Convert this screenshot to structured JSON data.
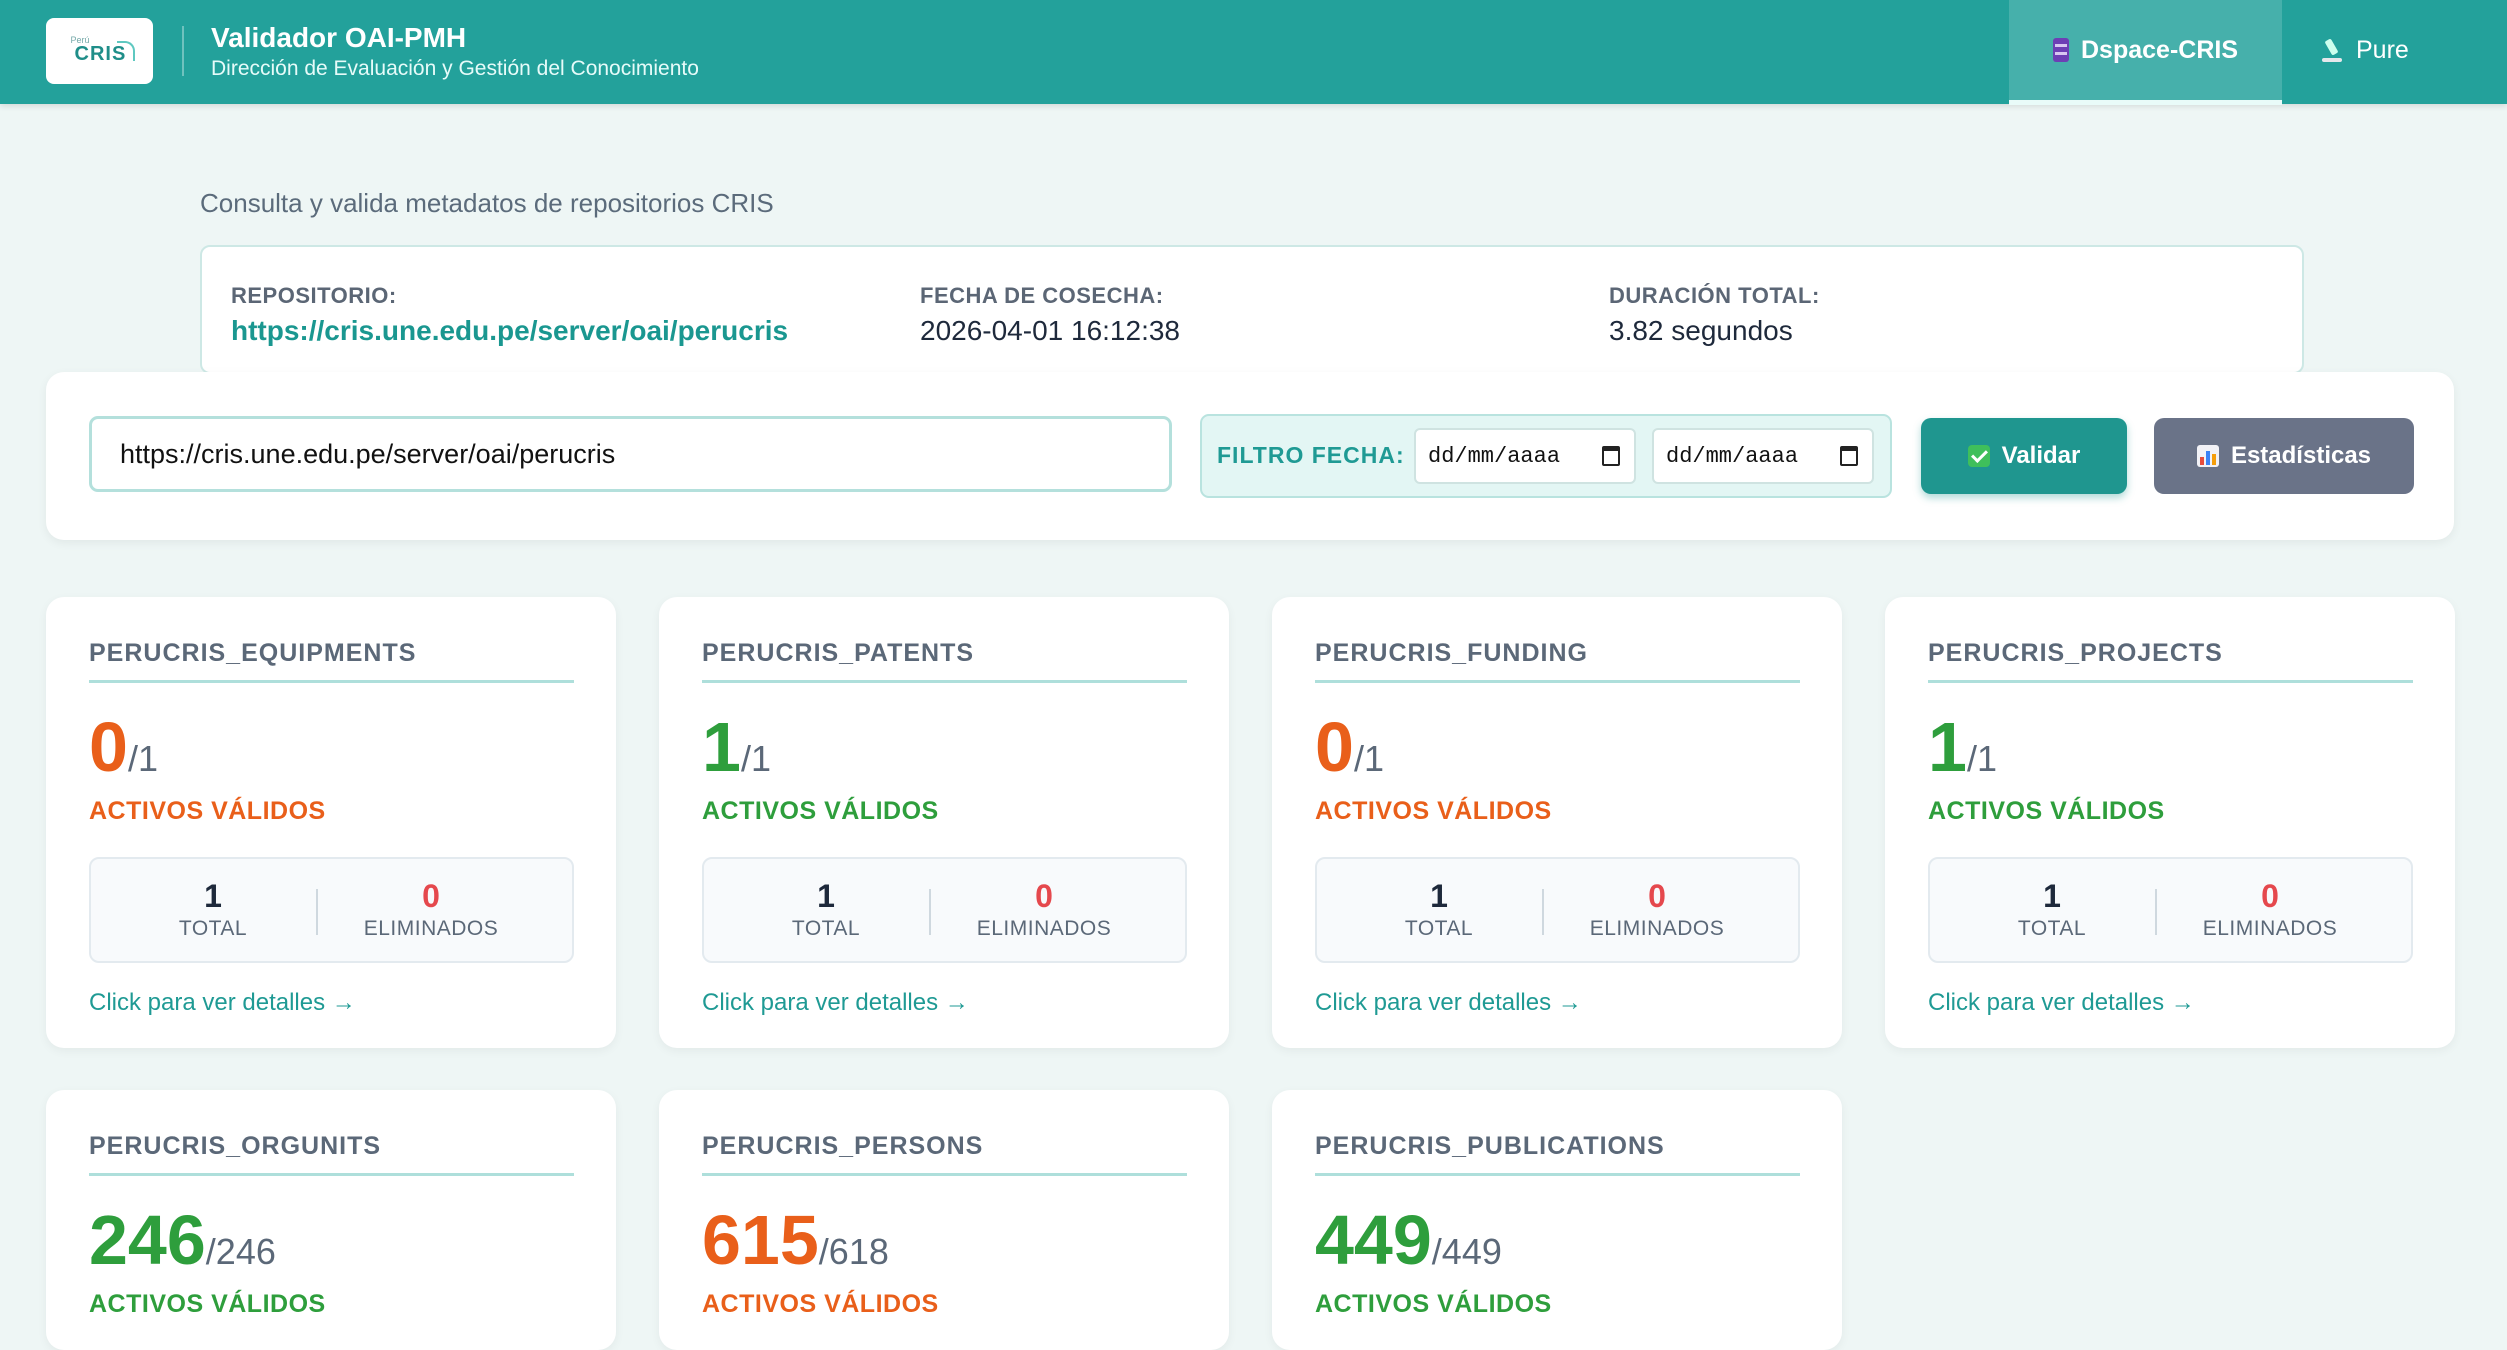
{
  "header": {
    "logo_small": "Perú",
    "logo_text": "CRIS",
    "title": "Validador OAI-PMH",
    "subtitle": "Dirección de Evaluación y Gestión del Conocimiento",
    "tabs": [
      {
        "label": "Dspace-CRIS",
        "icon": "database-icon",
        "active": true
      },
      {
        "label": "Pure",
        "icon": "microscope-icon",
        "active": false
      }
    ]
  },
  "intro": "Consulta y valida metadatos de repositorios CRIS",
  "info": {
    "repo_label": "REPOSITORIO:",
    "repo_value": "https://cris.une.edu.pe/server/oai/perucris",
    "date_label": "FECHA DE COSECHA:",
    "date_value": "2026-04-01 16:12:38",
    "duration_label": "DURACIÓN TOTAL:",
    "duration_value": "3.82 segundos"
  },
  "toolbar": {
    "url_value": "https://cris.une.edu.pe/server/oai/perucris",
    "filter_label": "FILTRO FECHA:",
    "date_from_placeholder": "dd/mm/aaaa",
    "date_to_placeholder": "dd/mm/aaaa",
    "validate_label": "Validar",
    "stats_label": "Estadísticas"
  },
  "colors": {
    "primary": "#23a19b",
    "valid_green": "#2e9e3c",
    "invalid_orange": "#e95f1a",
    "deleted_red": "#e5484d"
  },
  "cards": [
    {
      "title": "PERUCRIS_EQUIPMENTS",
      "valid": "0",
      "total_of": "/1",
      "status": "ACTIVOS VÁLIDOS",
      "ok": false,
      "total": "1",
      "total_label": "TOTAL",
      "deleted": "0",
      "deleted_label": "ELIMINADOS",
      "link": "Click para ver detalles →"
    },
    {
      "title": "PERUCRIS_PATENTS",
      "valid": "1",
      "total_of": "/1",
      "status": "ACTIVOS VÁLIDOS",
      "ok": true,
      "total": "1",
      "total_label": "TOTAL",
      "deleted": "0",
      "deleted_label": "ELIMINADOS",
      "link": "Click para ver detalles →"
    },
    {
      "title": "PERUCRIS_FUNDING",
      "valid": "0",
      "total_of": "/1",
      "status": "ACTIVOS VÁLIDOS",
      "ok": false,
      "total": "1",
      "total_label": "TOTAL",
      "deleted": "0",
      "deleted_label": "ELIMINADOS",
      "link": "Click para ver detalles →"
    },
    {
      "title": "PERUCRIS_PROJECTS",
      "valid": "1",
      "total_of": "/1",
      "status": "ACTIVOS VÁLIDOS",
      "ok": true,
      "total": "1",
      "total_label": "TOTAL",
      "deleted": "0",
      "deleted_label": "ELIMINADOS",
      "link": "Click para ver detalles →"
    },
    {
      "title": "PERUCRIS_ORGUNITS",
      "valid": "246",
      "total_of": "/246",
      "status": "ACTIVOS VÁLIDOS",
      "ok": true
    },
    {
      "title": "PERUCRIS_PERSONS",
      "valid": "615",
      "total_of": "/618",
      "status": "ACTIVOS VÁLIDOS",
      "ok": false
    },
    {
      "title": "PERUCRIS_PUBLICATIONS",
      "valid": "449",
      "total_of": "/449",
      "status": "ACTIVOS VÁLIDOS",
      "ok": true
    }
  ]
}
